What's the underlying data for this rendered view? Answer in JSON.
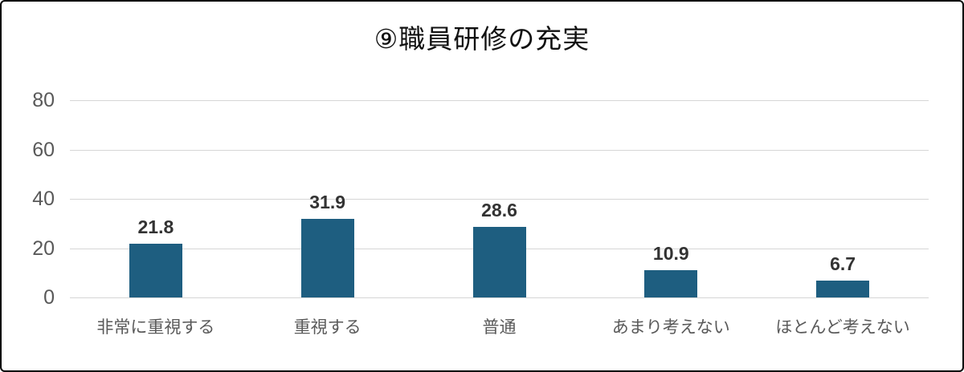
{
  "chart_data": {
    "type": "bar",
    "title": "⑨職員研修の充実",
    "categories": [
      "非常に重視する",
      "重視する",
      "普通",
      "あまり考えない",
      "ほとんど考えない"
    ],
    "values": [
      21.8,
      31.9,
      28.6,
      10.9,
      6.7
    ],
    "data_labels": [
      "21.8",
      "31.9",
      "28.6",
      "10.9",
      "6.7"
    ],
    "y_ticks": [
      0,
      20,
      40,
      60,
      80
    ],
    "ylim": [
      0,
      80
    ],
    "xlabel": "",
    "ylabel": "",
    "grid": true,
    "legend_position": "none",
    "bar_color": "#1E5E80",
    "gridline_color": "#D6D6D6",
    "axis_label_color": "#595959",
    "value_label_color": "#333333",
    "title_color": "#111111",
    "frame_border_color": "#000000"
  }
}
